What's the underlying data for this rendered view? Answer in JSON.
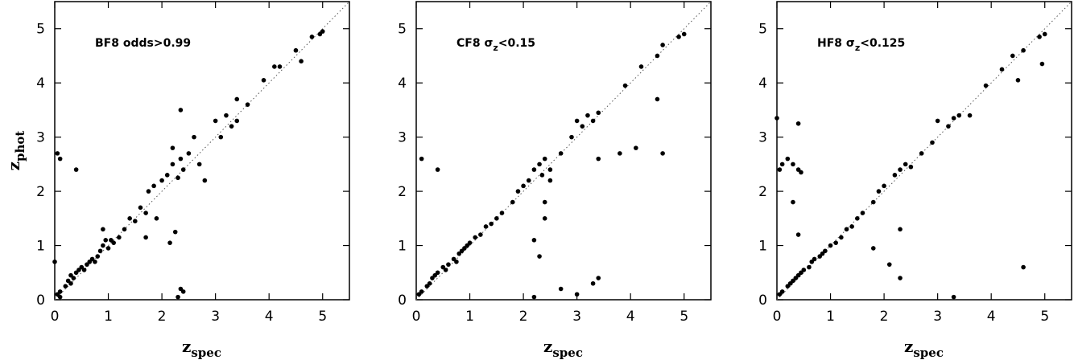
{
  "chart_data": [
    {
      "type": "scatter",
      "color": "#000000",
      "annotation": [
        {
          "text": "BF8  odds>0.99"
        }
      ],
      "x_label": "z",
      "x_label_sub": "spec",
      "y_label": "z",
      "y_label_sub": "phot",
      "xlim": [
        0,
        5.5
      ],
      "ylim": [
        0,
        5.5
      ],
      "xticks": [
        0,
        1,
        2,
        3,
        4,
        5
      ],
      "yticks": [
        0,
        1,
        2,
        3,
        4,
        5
      ],
      "one_to_one_line": true,
      "x": [
        0.05,
        0.1,
        0.1,
        0.2,
        0.25,
        0.3,
        0.3,
        0.35,
        0.4,
        0.45,
        0.5,
        0.55,
        0.6,
        0.65,
        0.7,
        0.75,
        0.8,
        0.85,
        0.9,
        0.95,
        1.0,
        1.05,
        1.1,
        1.2,
        0.9,
        1.3,
        1.4,
        1.5,
        1.6,
        1.7,
        1.75,
        1.85,
        1.9,
        2.0,
        2.1,
        2.2,
        2.2,
        2.3,
        2.35,
        2.35,
        2.4,
        2.5,
        2.6,
        2.7,
        2.8,
        3.0,
        3.1,
        3.2,
        3.3,
        3.4,
        3.4,
        3.6,
        3.9,
        4.1,
        4.2,
        4.5,
        4.6,
        4.8,
        4.95,
        5.0,
        0.05,
        0.1,
        0.4,
        1.7,
        2.15,
        2.25,
        2.35,
        2.4,
        2.3,
        0.0
      ],
      "y": [
        0.1,
        0.05,
        0.15,
        0.25,
        0.35,
        0.3,
        0.45,
        0.4,
        0.5,
        0.55,
        0.6,
        0.55,
        0.65,
        0.7,
        0.75,
        0.7,
        0.8,
        0.9,
        1.0,
        1.1,
        0.95,
        1.1,
        1.05,
        1.15,
        1.3,
        1.3,
        1.5,
        1.45,
        1.7,
        1.6,
        2.0,
        2.1,
        1.5,
        2.2,
        2.3,
        2.5,
        2.8,
        2.25,
        2.6,
        3.5,
        2.4,
        2.7,
        3.0,
        2.5,
        2.2,
        3.3,
        3.0,
        3.4,
        3.2,
        3.7,
        3.3,
        3.6,
        4.05,
        4.3,
        4.3,
        4.6,
        4.4,
        4.85,
        4.9,
        4.95,
        2.7,
        2.6,
        2.4,
        1.15,
        1.05,
        1.25,
        0.2,
        0.15,
        0.05,
        0.7
      ]
    },
    {
      "type": "scatter",
      "color": "#000000",
      "annotation": [
        {
          "text": "CF8  σ"
        },
        {
          "text": "z",
          "sub": true
        },
        {
          "text": "<0.15"
        }
      ],
      "x_label": "z",
      "x_label_sub": "spec",
      "xlim": [
        0,
        5.5
      ],
      "ylim": [
        0,
        5.5
      ],
      "xticks": [
        0,
        1,
        2,
        3,
        4,
        5
      ],
      "yticks": [
        0,
        1,
        2,
        3,
        4,
        5
      ],
      "one_to_one_line": true,
      "x": [
        0.05,
        0.1,
        0.2,
        0.25,
        0.3,
        0.35,
        0.4,
        0.5,
        0.55,
        0.6,
        0.7,
        0.75,
        0.8,
        0.85,
        0.9,
        0.95,
        1.0,
        1.1,
        1.2,
        1.3,
        1.4,
        1.5,
        1.6,
        1.8,
        1.9,
        2.0,
        2.1,
        2.2,
        2.3,
        2.35,
        2.4,
        2.5,
        2.7,
        2.9,
        3.0,
        3.1,
        3.2,
        3.3,
        3.4,
        3.9,
        4.2,
        4.5,
        4.6,
        4.9,
        5.0,
        0.1,
        0.4,
        2.3,
        2.2,
        2.4,
        2.4,
        2.5,
        3.0,
        3.3,
        3.4,
        2.7,
        3.8,
        4.1,
        4.5,
        4.6,
        3.4,
        2.2
      ],
      "y": [
        0.1,
        0.15,
        0.25,
        0.3,
        0.4,
        0.45,
        0.5,
        0.6,
        0.55,
        0.65,
        0.75,
        0.7,
        0.85,
        0.9,
        0.95,
        1.0,
        1.05,
        1.15,
        1.2,
        1.35,
        1.4,
        1.5,
        1.6,
        1.8,
        2.0,
        2.1,
        2.2,
        2.4,
        2.5,
        2.3,
        2.6,
        2.4,
        2.7,
        3.0,
        3.3,
        3.2,
        3.4,
        3.3,
        3.45,
        3.95,
        4.3,
        4.5,
        4.7,
        4.85,
        4.9,
        2.6,
        2.4,
        0.8,
        1.1,
        1.5,
        1.8,
        2.2,
        0.1,
        0.3,
        0.4,
        0.2,
        2.7,
        2.8,
        3.7,
        2.7,
        2.6,
        0.05
      ]
    },
    {
      "type": "scatter",
      "color": "#000000",
      "annotation": [
        {
          "text": "HF8  σ"
        },
        {
          "text": "z",
          "sub": true
        },
        {
          "text": "<0.125"
        }
      ],
      "x_label": "z",
      "x_label_sub": "spec",
      "xlim": [
        0,
        5.5
      ],
      "ylim": [
        0,
        5.5
      ],
      "xticks": [
        0,
        1,
        2,
        3,
        4,
        5
      ],
      "yticks": [
        0,
        1,
        2,
        3,
        4,
        5
      ],
      "one_to_one_line": true,
      "x": [
        0.05,
        0.1,
        0.2,
        0.25,
        0.3,
        0.35,
        0.4,
        0.45,
        0.5,
        0.6,
        0.65,
        0.7,
        0.8,
        0.85,
        0.9,
        1.0,
        1.1,
        1.2,
        1.3,
        1.4,
        1.5,
        1.6,
        1.8,
        1.9,
        2.0,
        2.2,
        2.3,
        2.4,
        2.5,
        2.7,
        2.9,
        3.0,
        3.2,
        3.3,
        3.4,
        3.6,
        3.9,
        4.2,
        4.4,
        4.6,
        4.9,
        5.0,
        0.0,
        0.05,
        0.1,
        0.2,
        0.3,
        0.4,
        0.45,
        0.4,
        0.3,
        0.4,
        1.8,
        2.1,
        2.3,
        2.3,
        3.3,
        4.6,
        4.5,
        4.95
      ],
      "y": [
        0.1,
        0.15,
        0.25,
        0.3,
        0.35,
        0.4,
        0.45,
        0.5,
        0.55,
        0.6,
        0.7,
        0.75,
        0.8,
        0.85,
        0.9,
        1.0,
        1.05,
        1.15,
        1.3,
        1.35,
        1.5,
        1.6,
        1.8,
        2.0,
        2.1,
        2.3,
        2.4,
        2.5,
        2.45,
        2.7,
        2.9,
        3.3,
        3.2,
        3.35,
        3.4,
        3.4,
        3.95,
        4.25,
        4.5,
        4.6,
        4.85,
        4.9,
        3.35,
        2.4,
        2.5,
        2.6,
        2.5,
        2.4,
        2.35,
        3.25,
        1.8,
        1.2,
        0.95,
        0.65,
        0.4,
        1.3,
        0.05,
        0.6,
        4.05,
        4.35
      ]
    }
  ]
}
